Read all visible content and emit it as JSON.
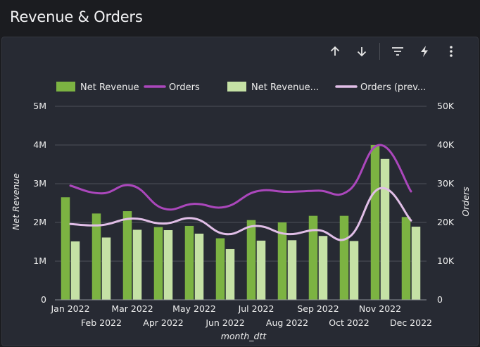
{
  "header": {
    "title": "Revenue & Orders"
  },
  "toolbar": {
    "icons": [
      "arrow-up-icon",
      "arrow-down-icon",
      "filter-icon",
      "lightning-icon",
      "more-vert-icon"
    ]
  },
  "colors": {
    "net_revenue": "#7cb342",
    "orders": "#ab47bc",
    "net_revenue_prev": "#c5e1a5",
    "orders_prev": "#e1bee7",
    "background": "#272a33",
    "grid": "#4c505a"
  },
  "chart_data": {
    "type": "bar",
    "categories": [
      "Jan 2022",
      "Feb 2022",
      "Mar 2022",
      "Apr 2022",
      "May 2022",
      "Jun 2022",
      "Jul 2022",
      "Aug 2022",
      "Sep 2022",
      "Oct 2022",
      "Nov 2022",
      "Dec 2022"
    ],
    "xlabel": "month_dtt",
    "ylabel": "Net Revenue",
    "y2label": "Orders",
    "ylim": [
      0,
      5000000
    ],
    "y2lim": [
      0,
      50000
    ],
    "yticks": [
      "0",
      "1M",
      "2M",
      "3M",
      "4M",
      "5M"
    ],
    "y2ticks": [
      "0",
      "10K",
      "20K",
      "30K",
      "40K",
      "50K"
    ],
    "grid": true,
    "legend_position": "top",
    "series": [
      {
        "name": "Net Revenue",
        "kind": "bar",
        "axis": "left",
        "values": [
          2650000,
          2230000,
          2290000,
          1880000,
          1910000,
          1590000,
          2060000,
          2000000,
          2170000,
          2170000,
          4000000,
          2140000
        ]
      },
      {
        "name": "Orders",
        "kind": "line",
        "axis": "right",
        "values": [
          29500,
          27500,
          29500,
          23600,
          24800,
          24000,
          28000,
          27900,
          28200,
          28300,
          40000,
          28000
        ]
      },
      {
        "name": "Net Revenue...",
        "kind": "bar",
        "axis": "left",
        "values": [
          1510000,
          1610000,
          1810000,
          1800000,
          1710000,
          1310000,
          1530000,
          1540000,
          1650000,
          1520000,
          3640000,
          1890000
        ]
      },
      {
        "name": "Orders (prev...",
        "kind": "line",
        "axis": "right",
        "values": [
          19600,
          19300,
          21000,
          19700,
          21000,
          17000,
          19100,
          17000,
          18000,
          16200,
          28800,
          20500
        ]
      }
    ]
  }
}
